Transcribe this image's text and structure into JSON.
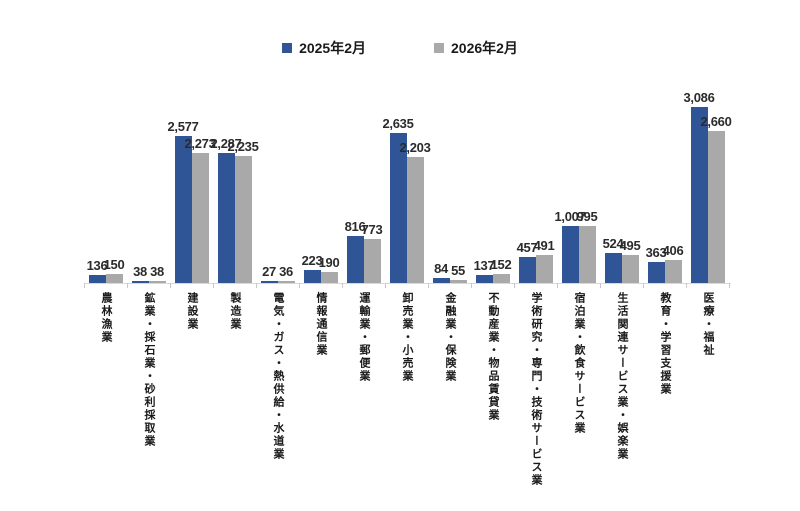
{
  "colors": {
    "series1": "#2F5597",
    "series2": "#A9A9A9",
    "value_label": "#2B2B2B",
    "category_label": "#1A1A1A",
    "axis_line": "#D9D9D9",
    "tick": "#C9C9C9",
    "background": "#FFFFFF"
  },
  "chart_data": {
    "type": "bar",
    "categories": [
      "農林漁業",
      "鉱業・採石業・砂利採取業",
      "建設業",
      "製造業",
      "電気・ガス・熱供給・水道業",
      "情報通信業",
      "運輸業・郵便業",
      "卸売業・小売業",
      "金融業・保険業",
      "不動産業・物品賃貸業",
      "学術研究・専門・技術サービス業",
      "宿泊業・飲食サービス業",
      "生活関連サービス業・娯楽業",
      "教育・学習支援業",
      "医療・福祉"
    ],
    "series": [
      {
        "name": "2025年2月",
        "color": "#2F5597",
        "values": [
          136,
          38,
          2577,
          2287,
          27,
          223,
          816,
          2635,
          84,
          137,
          457,
          1007,
          524,
          363,
          3086
        ]
      },
      {
        "name": "2026年2月",
        "color": "#A9A9A9",
        "values": [
          150,
          38,
          2273,
          2235,
          36,
          190,
          773,
          2203,
          55,
          152,
          491,
          995,
          495,
          406,
          2660
        ]
      }
    ],
    "ylim": [
      0,
      3500
    ],
    "grid": false,
    "legend_position": "top",
    "value_label_position": "outside-end",
    "number_format": "thousands-comma"
  }
}
